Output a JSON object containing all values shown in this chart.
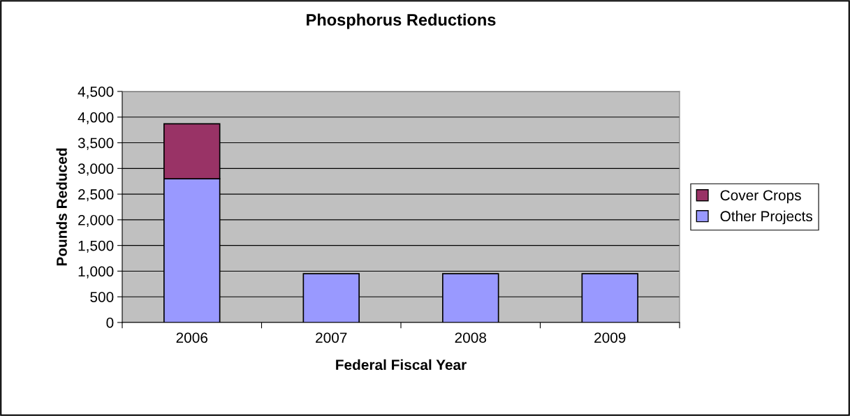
{
  "chart_data": {
    "type": "bar",
    "title": "Phosphorus Reductions",
    "xlabel": "Federal Fiscal Year",
    "ylabel": "Pounds Reduced",
    "categories": [
      "2006",
      "2007",
      "2008",
      "2009"
    ],
    "stacked": true,
    "series": [
      {
        "name": "Other Projects",
        "color": "#9999ff",
        "values": [
          2800,
          950,
          950,
          950
        ]
      },
      {
        "name": "Cover Crops",
        "color": "#993366",
        "values": [
          1070,
          null,
          null,
          null
        ]
      }
    ],
    "ylim": [
      0,
      4500
    ],
    "yticks": [
      {
        "value": 0,
        "label": "0"
      },
      {
        "value": 500,
        "label": "500"
      },
      {
        "value": 1000,
        "label": "1,000"
      },
      {
        "value": 1500,
        "label": "1,500"
      },
      {
        "value": 2000,
        "label": "2,000"
      },
      {
        "value": 2500,
        "label": "2,500"
      },
      {
        "value": 3000,
        "label": "3,000"
      },
      {
        "value": 3500,
        "label": "3,500"
      },
      {
        "value": 4000,
        "label": "4,000"
      },
      {
        "value": 4500,
        "label": "4,500"
      }
    ],
    "grid": "y",
    "legend": "right"
  }
}
